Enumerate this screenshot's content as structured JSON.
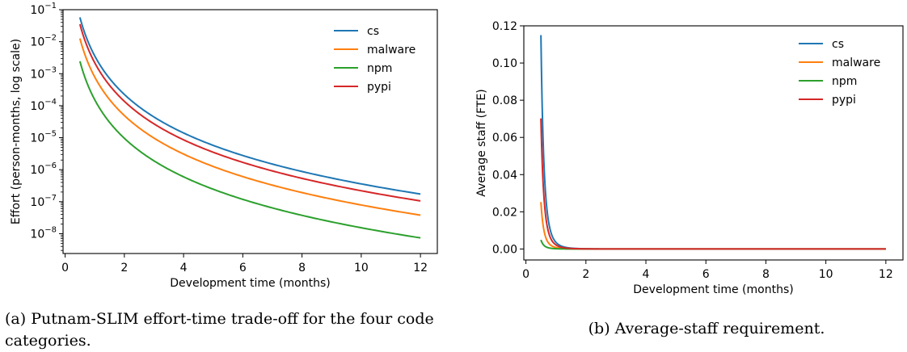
{
  "captions": {
    "a": "(a) Putnam-SLIM effort-time trade-off for the four code categories.",
    "b": "(b) Average-staff requirement."
  },
  "chart_data": [
    {
      "type": "line",
      "xlabel": "Development time (months)",
      "ylabel": "Effort (person-months, log scale)",
      "xlim": [
        -0.07,
        12.57
      ],
      "ylim": [
        2.4e-09,
        0.1
      ],
      "yscale": "log",
      "xticks": [
        "0",
        "2",
        "4",
        "6",
        "8",
        "10",
        "12"
      ],
      "yticks": [
        "10",
        "10",
        "10",
        "10",
        "10",
        "10",
        "10",
        "10"
      ],
      "ytick_exponents": [
        "-1",
        "-2",
        "-3",
        "-4",
        "-5",
        "-6",
        "-7",
        "-8"
      ],
      "legend_position": "top-right",
      "grid": false,
      "series": [
        {
          "name": "cs",
          "color": "#1f77b4",
          "x": [
            0.5,
            12
          ],
          "y": [
            0.0575,
            1.71e-07
          ]
        },
        {
          "name": "malware",
          "color": "#ff7f0e",
          "x": [
            0.5,
            12
          ],
          "y": [
            0.0126,
            3.75e-08
          ]
        },
        {
          "name": "npm",
          "color": "#2ca02c",
          "x": [
            0.5,
            12
          ],
          "y": [
            0.00245,
            7.3e-09
          ]
        },
        {
          "name": "pypi",
          "color": "#d62728",
          "x": [
            0.5,
            12
          ],
          "y": [
            0.0351,
            1.05e-07
          ]
        }
      ]
    },
    {
      "type": "line",
      "xlabel": "Development time (months)",
      "ylabel": "Average staff (FTE)",
      "xlim": [
        -0.07,
        12.57
      ],
      "ylim": [
        -0.0059,
        0.12
      ],
      "xticks": [
        "0",
        "2",
        "4",
        "6",
        "8",
        "10",
        "12"
      ],
      "yticks": [
        "0.00",
        "0.02",
        "0.04",
        "0.06",
        "0.08",
        "0.10",
        "0.12"
      ],
      "legend_position": "top-right",
      "grid": false,
      "series": [
        {
          "name": "cs",
          "color": "#1f77b4",
          "x": [
            0.5,
            12
          ],
          "y": [
            0.115,
            0.0
          ]
        },
        {
          "name": "malware",
          "color": "#ff7f0e",
          "x": [
            0.5,
            12
          ],
          "y": [
            0.0252,
            0.0
          ]
        },
        {
          "name": "npm",
          "color": "#2ca02c",
          "x": [
            0.5,
            12
          ],
          "y": [
            0.0049,
            0.0
          ]
        },
        {
          "name": "pypi",
          "color": "#d62728",
          "x": [
            0.5,
            12
          ],
          "y": [
            0.0702,
            0.0
          ]
        }
      ]
    }
  ]
}
